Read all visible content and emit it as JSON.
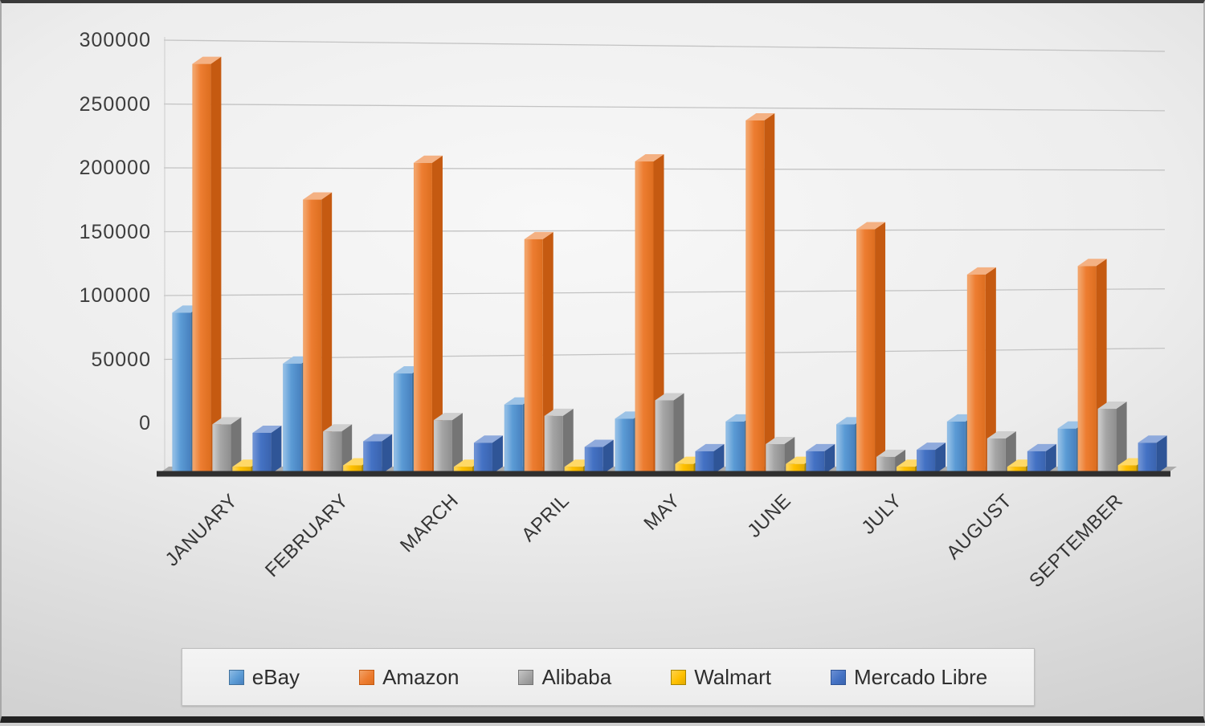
{
  "chart_data": {
    "type": "bar",
    "style": "3d-clustered-column",
    "title": "",
    "xlabel": "",
    "ylabel": "",
    "grid": true,
    "legend_position": "bottom",
    "categories": [
      "JANUARY",
      "FEBRUARY",
      "MARCH",
      "APRIL",
      "MAY",
      "JUNE",
      "JULY",
      "AUGUST",
      "SEPTEMBER"
    ],
    "series": [
      {
        "name": "eBay",
        "color": "#5B9BD5",
        "values": [
          114000,
          78000,
          71000,
          49000,
          39000,
          37000,
          35000,
          37000,
          32000
        ]
      },
      {
        "name": "Amazon",
        "color": "#ED7D31",
        "values": [
          290000,
          194000,
          220000,
          166000,
          221000,
          250000,
          173000,
          141000,
          147000
        ]
      },
      {
        "name": "Alibaba",
        "color": "#A5A5A5",
        "values": [
          35000,
          30000,
          38000,
          41000,
          52000,
          21000,
          12000,
          25000,
          46000
        ]
      },
      {
        "name": "Walmart",
        "color": "#FFC000",
        "values": [
          5000,
          6000,
          5000,
          5000,
          7000,
          7000,
          5000,
          5000,
          6000
        ]
      },
      {
        "name": "Mercado Libre",
        "color": "#4472C4",
        "values": [
          29000,
          23000,
          22000,
          19000,
          16000,
          16000,
          17000,
          16000,
          22000
        ]
      }
    ],
    "ylim": [
      0,
      300000
    ],
    "y_ticks": [
      0,
      50000,
      100000,
      150000,
      200000,
      250000,
      300000
    ],
    "y_tick_labels": [
      "0",
      "50000",
      "100000",
      "150000",
      "200000",
      "250000",
      "300000"
    ]
  },
  "legend": {
    "items": [
      "eBay",
      "Amazon",
      "Alibaba",
      "Walmart",
      "Mercado Libre"
    ]
  },
  "colors": {
    "gridline": "#c3c3c3",
    "axis_text": "#3d3d3d",
    "floor_front": "#2f2f2f",
    "floor_slab": "#ababab",
    "legend_bg": "#f1f1f1",
    "legend_border": "#bfbfbf",
    "series_shading": {
      "eBay": {
        "light": "#8DBBE4",
        "dark": "#4780BE",
        "top": "#9DC3E6",
        "side": "#41719C"
      },
      "Amazon": {
        "light": "#F2A267",
        "dark": "#DD6E1F",
        "top": "#F4B183",
        "side": "#C55A11"
      },
      "Alibaba": {
        "light": "#C6C6C6",
        "dark": "#8E8E8E",
        "top": "#CFCFCF",
        "side": "#757575"
      },
      "Walmart": {
        "light": "#FFD24D",
        "dark": "#E2AA00",
        "top": "#FFD966",
        "side": "#A98500"
      },
      "Mercado Libre": {
        "light": "#6A8FD3",
        "dark": "#3A63AE",
        "top": "#8FAADC",
        "side": "#2F5597"
      }
    }
  }
}
